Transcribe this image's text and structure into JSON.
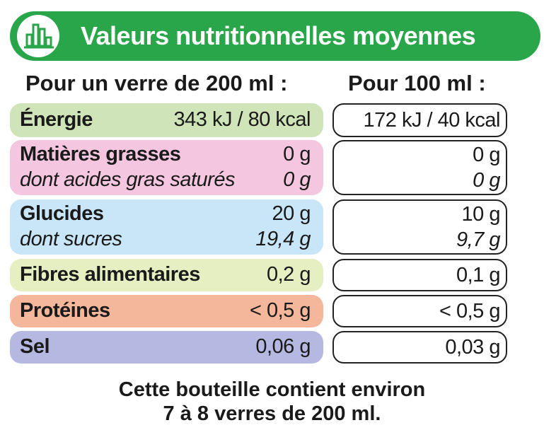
{
  "title": "Valeurs nutritionnelles moyennes",
  "col_headers": {
    "per_glass": "Pour un verre de 200 ml :",
    "per_100": "Pour 100 ml :"
  },
  "rows": [
    {
      "label": "Énergie",
      "per_glass": "343 kJ / 80 kcal",
      "per_100": "172 kJ / 40 kcal",
      "color": "#cfe4b8"
    },
    {
      "label": "Matières grasses",
      "per_glass": "0 g",
      "per_100": "0 g",
      "sub_label": "dont acides gras saturés",
      "sub_per_glass": "0 g",
      "sub_per_100": "0 g",
      "color": "#f4c6e0"
    },
    {
      "label": "Glucides",
      "per_glass": "20 g",
      "per_100": "10 g",
      "sub_label": "dont sucres",
      "sub_per_glass": "19,4 g",
      "sub_per_100": "9,7 g",
      "color": "#c8e6f7"
    },
    {
      "label": "Fibres alimentaires",
      "per_glass": "0,2 g",
      "per_100": "0,1 g",
      "color": "#e6efc1"
    },
    {
      "label": "Protéines",
      "per_glass": "< 0,5 g",
      "per_100": "< 0,5 g",
      "color": "#f5b79b"
    },
    {
      "label": "Sel",
      "per_glass": "0,06 g",
      "per_100": "0,03 g",
      "color": "#b5b9e1"
    }
  ],
  "footer": {
    "line1": "Cette bouteille contient environ",
    "line2": "7 à 8 verres de 200 ml."
  },
  "colors": {
    "banner": "#2aa64a",
    "text": "#1a1a1a"
  },
  "icon": "bar-chart-icon"
}
